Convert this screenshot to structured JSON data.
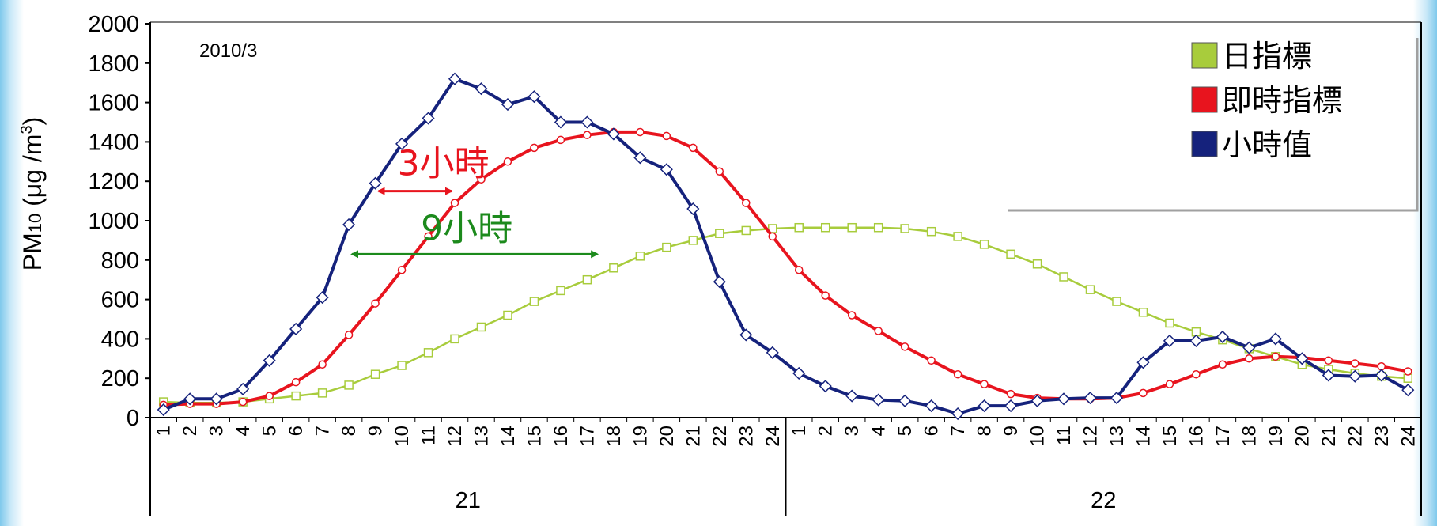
{
  "chart_data": {
    "type": "line",
    "annotation_date": "2010/3",
    "ylabel": "PM₁₀ (μg /m³)",
    "ylim": [
      0,
      2000
    ],
    "yticks": [
      0,
      200,
      400,
      600,
      800,
      1000,
      1200,
      1400,
      1600,
      1800,
      2000
    ],
    "x_hours": [
      "1",
      "2",
      "3",
      "4",
      "5",
      "6",
      "7",
      "8",
      "9",
      "10",
      "11",
      "12",
      "13",
      "14",
      "15",
      "16",
      "17",
      "18",
      "19",
      "20",
      "21",
      "22",
      "23",
      "24",
      "1",
      "2",
      "3",
      "4",
      "5",
      "6",
      "7",
      "8",
      "9",
      "10",
      "11",
      "12",
      "13",
      "14",
      "15",
      "16",
      "17",
      "18",
      "19",
      "20",
      "21",
      "22",
      "23",
      "24"
    ],
    "x_groups": [
      {
        "label": "21",
        "from": 0,
        "to": 23
      },
      {
        "label": "22",
        "from": 24,
        "to": 47
      }
    ],
    "legend_position": "top-right",
    "series": [
      {
        "name": "日指標",
        "color": "#a8cc3c",
        "marker": "square",
        "values": [
          80,
          75,
          75,
          80,
          95,
          110,
          125,
          165,
          220,
          265,
          330,
          400,
          460,
          520,
          590,
          645,
          700,
          760,
          820,
          865,
          900,
          935,
          950,
          960,
          965,
          965,
          965,
          965,
          960,
          945,
          920,
          880,
          830,
          780,
          715,
          650,
          590,
          535,
          480,
          435,
          395,
          350,
          310,
          270,
          245,
          225,
          210,
          200
        ]
      },
      {
        "name": "即時指標",
        "color": "#e8141e",
        "marker": "circle",
        "values": [
          65,
          70,
          70,
          80,
          110,
          180,
          270,
          420,
          580,
          750,
          920,
          1090,
          1210,
          1300,
          1370,
          1410,
          1435,
          1450,
          1450,
          1430,
          1370,
          1250,
          1090,
          920,
          750,
          620,
          520,
          440,
          360,
          290,
          220,
          170,
          120,
          100,
          95,
          95,
          100,
          125,
          170,
          220,
          270,
          300,
          310,
          305,
          290,
          275,
          260,
          235
        ]
      },
      {
        "name": "小時值",
        "color": "#15227c",
        "marker": "diamond",
        "values": [
          40,
          95,
          95,
          145,
          290,
          450,
          610,
          980,
          1190,
          1390,
          1520,
          1720,
          1670,
          1590,
          1630,
          1500,
          1500,
          1440,
          1320,
          1260,
          1060,
          690,
          420,
          330,
          225,
          160,
          110,
          90,
          85,
          60,
          20,
          60,
          60,
          85,
          95,
          100,
          100,
          280,
          390,
          390,
          410,
          355,
          400,
          300,
          215,
          210,
          215,
          140
        ]
      }
    ],
    "annotations": [
      {
        "text": "3小時",
        "color": "#e8141e",
        "from_index": 8,
        "to_index": 11,
        "y": 1150
      },
      {
        "text": "9小時",
        "color": "#1c8a1c",
        "from_index": 7,
        "to_index": 16.5,
        "y": 830
      }
    ]
  }
}
